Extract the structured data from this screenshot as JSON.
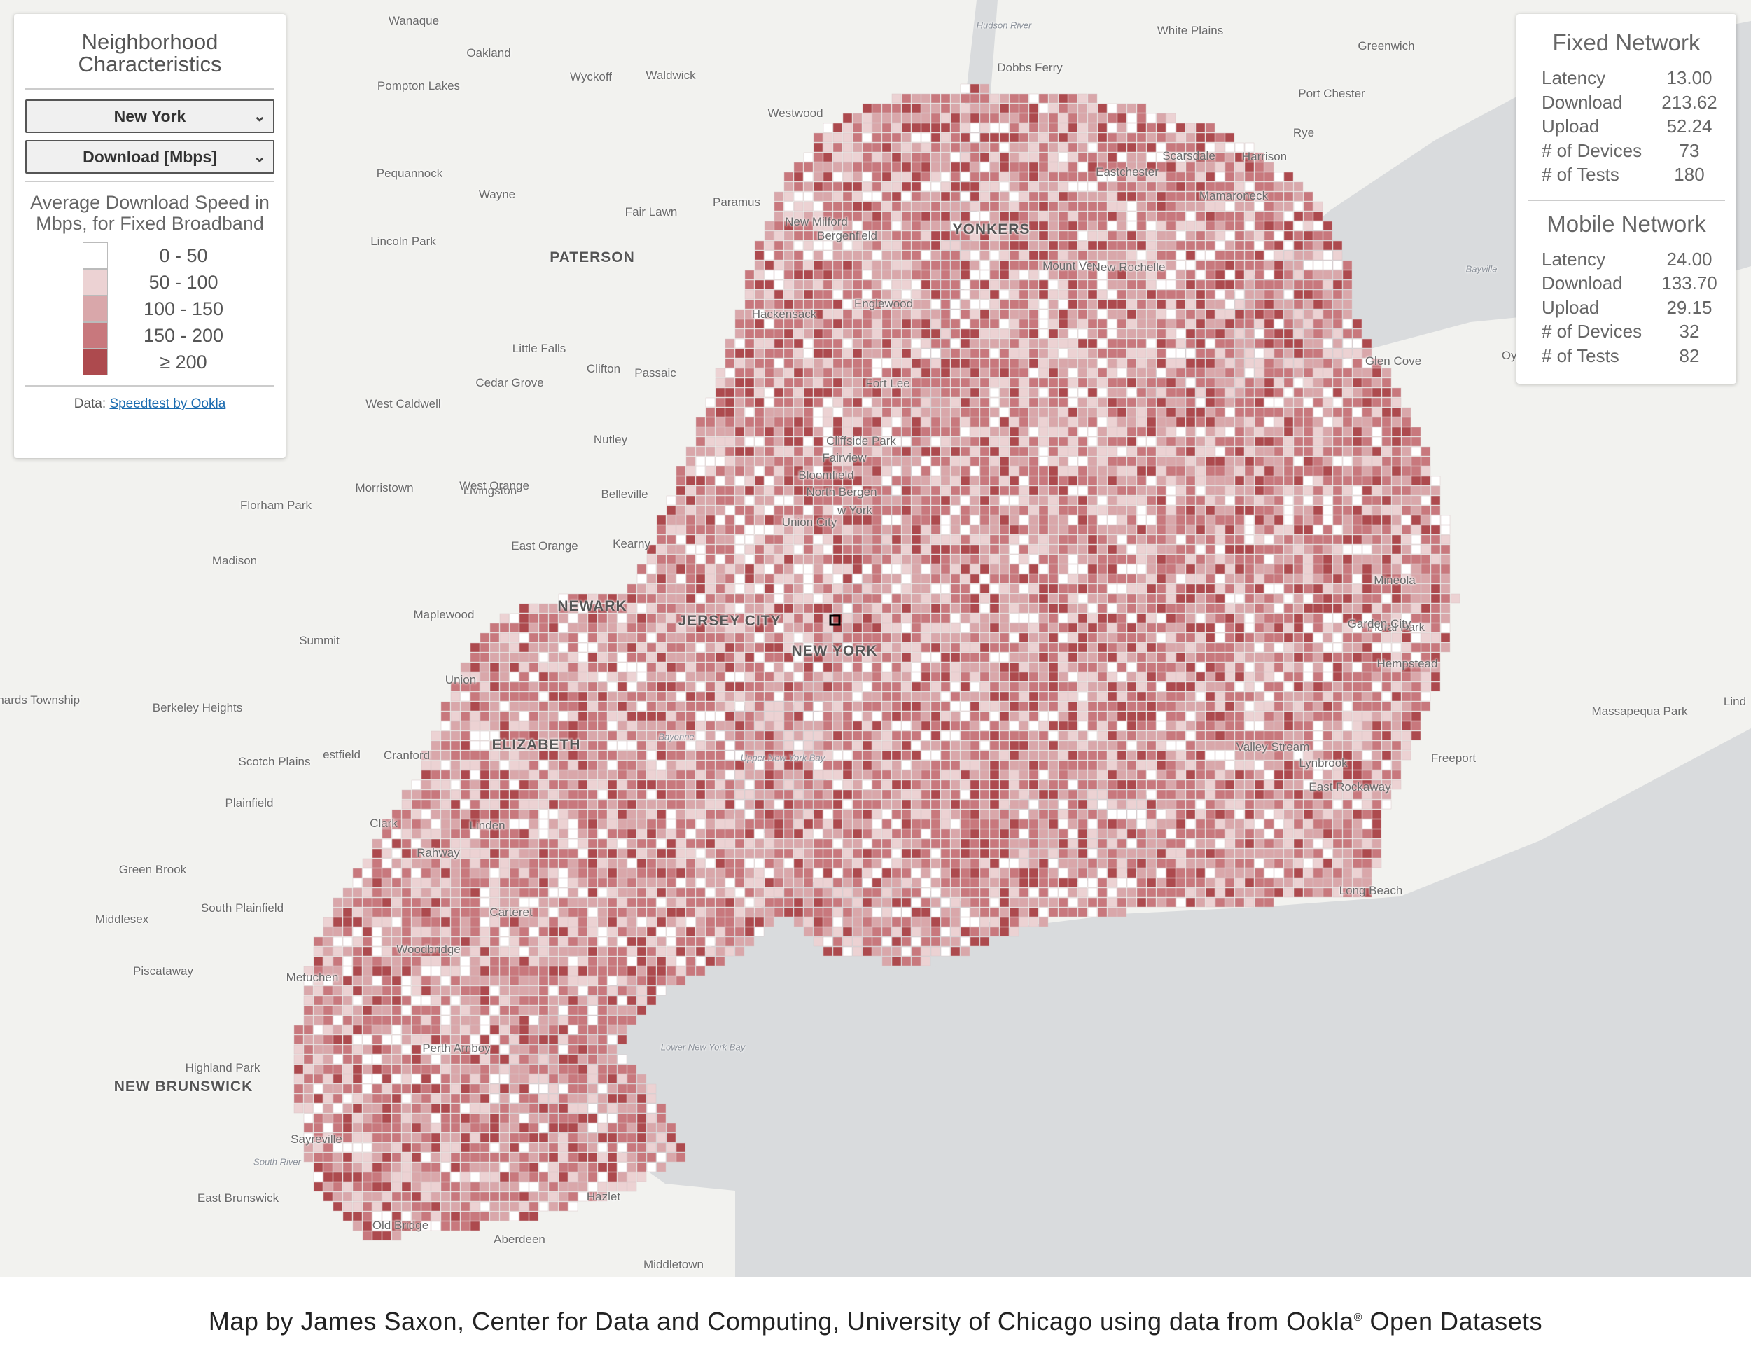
{
  "left_panel": {
    "title_line1": "Neighborhood",
    "title_line2": "Characteristics",
    "region_select": "New York",
    "metric_select": "Download [Mbps]",
    "legend_title": "Average Download Speed in Mbps, for Fixed Broadband",
    "legend": [
      {
        "label": "0 - 50",
        "color": "#ffffff"
      },
      {
        "label": "50 - 100",
        "color": "#ecd2d3"
      },
      {
        "label": "100 - 150",
        "color": "#d9a7aa"
      },
      {
        "label": "150 - 200",
        "color": "#c8787d"
      },
      {
        "label": "≥ 200",
        "color": "#ad4a4e"
      }
    ],
    "credit_prefix": "Data:",
    "credit_link": "Speedtest by Ookla"
  },
  "fixed_network": {
    "title": "Fixed Network",
    "rows": [
      {
        "label": "Latency",
        "value": "13.00"
      },
      {
        "label": "Download",
        "value": "213.62"
      },
      {
        "label": "Upload",
        "value": "52.24"
      },
      {
        "label": "# of Devices",
        "value": "73"
      },
      {
        "label": "# of Tests",
        "value": "180"
      }
    ]
  },
  "mobile_network": {
    "title": "Mobile Network",
    "rows": [
      {
        "label": "Latency",
        "value": "24.00"
      },
      {
        "label": "Download",
        "value": "133.70"
      },
      {
        "label": "Upload",
        "value": "29.15"
      },
      {
        "label": "# of Devices",
        "value": "32"
      },
      {
        "label": "# of Tests",
        "value": "82"
      }
    ]
  },
  "places": [
    {
      "name": "Wanaque",
      "city": false
    },
    {
      "name": "Oakland",
      "city": false
    },
    {
      "name": "Hudson River",
      "city": false
    },
    {
      "name": "White Plains",
      "city": false
    },
    {
      "name": "Greenwich",
      "city": false
    },
    {
      "name": "Pompton Lakes",
      "city": false
    },
    {
      "name": "Wyckoff",
      "city": false
    },
    {
      "name": "Waldwick",
      "city": false
    },
    {
      "name": "Dobbs Ferry",
      "city": false
    },
    {
      "name": "Port Chester",
      "city": false
    },
    {
      "name": "Westwood",
      "city": false
    },
    {
      "name": "Rye",
      "city": false
    },
    {
      "name": "Harrison",
      "city": false
    },
    {
      "name": "Scarsdale",
      "city": false
    },
    {
      "name": "Pequannock",
      "city": false
    },
    {
      "name": "Eastchester",
      "city": false
    },
    {
      "name": "Wayne",
      "city": false
    },
    {
      "name": "Paramus",
      "city": false
    },
    {
      "name": "Mamaroneck",
      "city": false
    },
    {
      "name": "Fair Lawn",
      "city": false
    },
    {
      "name": "New Milford",
      "city": false
    },
    {
      "name": "Bergenfield",
      "city": false
    },
    {
      "name": "YONKERS",
      "city": true
    },
    {
      "name": "Lincoln Park",
      "city": false
    },
    {
      "name": "PATERSON",
      "city": true
    },
    {
      "name": "Mount Ve",
      "city": false
    },
    {
      "name": "New Rochelle",
      "city": false
    },
    {
      "name": "Bayville",
      "city": false
    },
    {
      "name": "Englewood",
      "city": false
    },
    {
      "name": "Hackensack",
      "city": false
    },
    {
      "name": "Little Falls",
      "city": false
    },
    {
      "name": "Glen Cove",
      "city": false
    },
    {
      "name": "Oys",
      "city": false
    },
    {
      "name": "Clifton",
      "city": false
    },
    {
      "name": "Passaic",
      "city": false
    },
    {
      "name": "Cedar Grove",
      "city": false
    },
    {
      "name": "Fort Lee",
      "city": false
    },
    {
      "name": "West Caldwell",
      "city": false
    },
    {
      "name": "Nutley",
      "city": false
    },
    {
      "name": "Cliffside Park",
      "city": false
    },
    {
      "name": "Fairview",
      "city": false
    },
    {
      "name": "Bloomfield",
      "city": false
    },
    {
      "name": "North Bergen",
      "city": false
    },
    {
      "name": "Morristown",
      "city": false
    },
    {
      "name": "Livingston",
      "city": false
    },
    {
      "name": "West Orange",
      "city": false
    },
    {
      "name": "Belleville",
      "city": false
    },
    {
      "name": "w York",
      "city": false
    },
    {
      "name": "Florham Park",
      "city": false
    },
    {
      "name": "Union City",
      "city": false
    },
    {
      "name": "East Orange",
      "city": false
    },
    {
      "name": "Kearny",
      "city": false
    },
    {
      "name": "Madison",
      "city": false
    },
    {
      "name": "Mineola",
      "city": false
    },
    {
      "name": "NEWARK",
      "city": true
    },
    {
      "name": "Maplewood",
      "city": false
    },
    {
      "name": "JERSEY CITY",
      "city": true
    },
    {
      "name": "Floral Park",
      "city": false
    },
    {
      "name": "Garden City",
      "city": false
    },
    {
      "name": "NEW YORK",
      "city": true
    },
    {
      "name": "Summit",
      "city": false
    },
    {
      "name": "Hempstead",
      "city": false
    },
    {
      "name": "Union",
      "city": false
    },
    {
      "name": "Bernards Township",
      "city": false
    },
    {
      "name": "Berkeley Heights",
      "city": false
    },
    {
      "name": "Massapequa Park",
      "city": false
    },
    {
      "name": "Lind",
      "city": false
    },
    {
      "name": "Bayonne",
      "city": false
    },
    {
      "name": "ELIZABETH",
      "city": true
    },
    {
      "name": "Valley Stream",
      "city": false
    },
    {
      "name": "Upper New York Bay",
      "city": false
    },
    {
      "name": "Scotch Plains",
      "city": false
    },
    {
      "name": "estfield",
      "city": false
    },
    {
      "name": "Cranford",
      "city": false
    },
    {
      "name": "Lynbrook",
      "city": false
    },
    {
      "name": "Freeport",
      "city": false
    },
    {
      "name": "East Rockaway",
      "city": false
    },
    {
      "name": "Plainfield",
      "city": false
    },
    {
      "name": "Clark",
      "city": false
    },
    {
      "name": "Linden",
      "city": false
    },
    {
      "name": "Rahway",
      "city": false
    },
    {
      "name": "Green Brook",
      "city": false
    },
    {
      "name": "Long Beach",
      "city": false
    },
    {
      "name": "South Plainfield",
      "city": false
    },
    {
      "name": "Carteret",
      "city": false
    },
    {
      "name": "Middlesex",
      "city": false
    },
    {
      "name": "Woodbridge",
      "city": false
    },
    {
      "name": "Piscataway",
      "city": false
    },
    {
      "name": "Metuchen",
      "city": false
    },
    {
      "name": "Lower New York Bay",
      "city": false
    },
    {
      "name": "Perth Amboy",
      "city": false
    },
    {
      "name": "Highland Park",
      "city": false
    },
    {
      "name": "NEW BRUNSWICK",
      "city": true
    },
    {
      "name": "Sayreville",
      "city": false
    },
    {
      "name": "South River",
      "city": false
    },
    {
      "name": "Hazlet",
      "city": false
    },
    {
      "name": "East Brunswick",
      "city": false
    },
    {
      "name": "Old Bridge",
      "city": false
    },
    {
      "name": "Aberdeen",
      "city": false
    },
    {
      "name": "Middletown",
      "city": false
    }
  ],
  "footer": {
    "text_before": "Map by James Saxon, Center for Data and Computing, University of Chicago using data from Ookla",
    "reg": "®",
    "text_after": " Open Datasets"
  }
}
